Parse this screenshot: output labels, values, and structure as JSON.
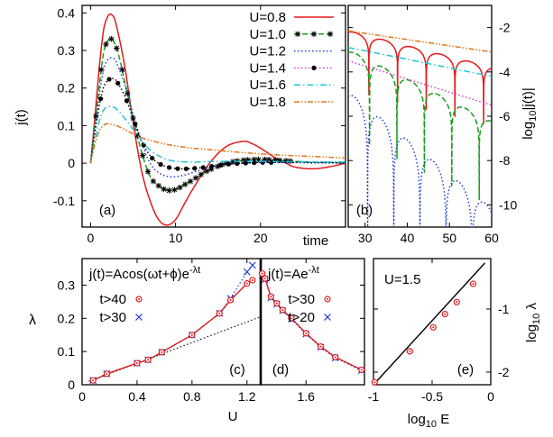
{
  "colors": {
    "U08": "#e41a1c",
    "U10": "#1a9e1a",
    "U12": "#1f3bd6",
    "U14": "#d73cd4",
    "U16": "#1bc9dd",
    "U18": "#e0781a",
    "fit40": "#e41a1c",
    "fit30": "#1f3bd6",
    "black": "#000000"
  },
  "chart_data": [
    {
      "id": "a",
      "type": "line",
      "panel_label": "(a)",
      "ylabel": "j(t)",
      "xlabel": "",
      "xlim": [
        -1,
        30
      ],
      "ylim": [
        -0.17,
        0.42
      ],
      "xticks": [
        "0",
        "10",
        "20"
      ],
      "yticks": [
        "-0.1",
        "0",
        "0.1",
        "0.2",
        "0.3",
        "0.4"
      ],
      "legend_position": "top-right",
      "series": [
        {
          "name": "U=0.8",
          "style": "solid",
          "color": "#e41a1c",
          "x": [
            0,
            0.5,
            1,
            1.5,
            2,
            2.5,
            3,
            4,
            5,
            6,
            7,
            8,
            9,
            10,
            11,
            12,
            14,
            16,
            18,
            19,
            20,
            21,
            22,
            23,
            24,
            26,
            28,
            30
          ],
          "y": [
            0,
            0.12,
            0.25,
            0.35,
            0.39,
            0.395,
            0.37,
            0.26,
            0.11,
            -0.02,
            -0.1,
            -0.15,
            -0.165,
            -0.15,
            -0.11,
            -0.07,
            0.0,
            0.045,
            0.058,
            0.052,
            0.04,
            0.025,
            0.01,
            0.0,
            -0.01,
            -0.015,
            -0.01,
            0.0
          ]
        },
        {
          "name": "U=1.0",
          "style": "dashed-star",
          "color": "#1a9e1a",
          "x": [
            0,
            0.5,
            1,
            1.5,
            2,
            2.5,
            3,
            3.5,
            4,
            5,
            6,
            7,
            8,
            9,
            10,
            11,
            12,
            13,
            14,
            16,
            18,
            20,
            22,
            24,
            26,
            28,
            30
          ],
          "y": [
            0,
            0.1,
            0.2,
            0.29,
            0.325,
            0.33,
            0.31,
            0.27,
            0.22,
            0.12,
            0.03,
            -0.035,
            -0.06,
            -0.072,
            -0.07,
            -0.058,
            -0.045,
            -0.03,
            -0.018,
            0.0,
            0.008,
            0.01,
            0.008,
            0.005,
            0.003,
            0.002,
            0.001
          ]
        },
        {
          "name": "U=1.2",
          "style": "dotted",
          "color": "#1f3bd6",
          "x": [
            0,
            0.5,
            1,
            1.5,
            2,
            2.5,
            3,
            4,
            5,
            6,
            7,
            8,
            9,
            10,
            11,
            12,
            14,
            16,
            18,
            20,
            24,
            28,
            30
          ],
          "y": [
            0,
            0.09,
            0.18,
            0.245,
            0.275,
            0.28,
            0.27,
            0.21,
            0.13,
            0.055,
            0.0,
            -0.025,
            -0.035,
            -0.036,
            -0.032,
            -0.025,
            -0.012,
            -0.004,
            0.0,
            0.002,
            0.003,
            0.002,
            0.001
          ]
        },
        {
          "name": "U=1.4",
          "style": "dotted-circle",
          "color": "#000000",
          "x": [
            0,
            0.5,
            1,
            1.5,
            2,
            2.5,
            3,
            4,
            5,
            6,
            7,
            8,
            9,
            10,
            11,
            12,
            13,
            14,
            15,
            16,
            17,
            18,
            19,
            20,
            21,
            22,
            23,
            24,
            26,
            28,
            30
          ],
          "y": [
            0,
            0.08,
            0.15,
            0.2,
            0.22,
            0.225,
            0.22,
            0.18,
            0.12,
            0.06,
            0.02,
            0.0,
            -0.01,
            -0.014,
            -0.015,
            -0.014,
            -0.012,
            -0.009,
            -0.006,
            -0.003,
            -0.001,
            0.0,
            0.001,
            0.002,
            0.002,
            0.002,
            0.002,
            0.002,
            0.001,
            0.001,
            0.0
          ]
        },
        {
          "name": "U=1.6",
          "style": "dash-dot",
          "color": "#1bc9dd",
          "x": [
            0,
            0.5,
            1,
            1.5,
            2,
            2.5,
            3,
            4,
            5,
            6,
            7,
            8,
            9,
            10,
            12,
            14,
            16,
            20,
            24,
            30
          ],
          "y": [
            0,
            0.06,
            0.11,
            0.14,
            0.15,
            0.15,
            0.145,
            0.12,
            0.09,
            0.06,
            0.035,
            0.02,
            0.01,
            0.005,
            0.003,
            0.004,
            0.005,
            0.005,
            0.004,
            0.003
          ]
        },
        {
          "name": "U=1.8",
          "style": "dash-dot-dot",
          "color": "#e0781a",
          "x": [
            0,
            0.5,
            1,
            1.5,
            2,
            3,
            4,
            5,
            6,
            8,
            10,
            12,
            14,
            16,
            18,
            20,
            22,
            24,
            26,
            28,
            30
          ],
          "y": [
            0,
            0.05,
            0.085,
            0.1,
            0.105,
            0.1,
            0.09,
            0.078,
            0.068,
            0.055,
            0.046,
            0.04,
            0.036,
            0.032,
            0.028,
            0.025,
            0.022,
            0.02,
            0.018,
            0.016,
            0.014
          ]
        }
      ]
    },
    {
      "id": "b",
      "type": "line",
      "panel_label": "(b)",
      "ylabel": "log10|j(t)|",
      "xlabel": "",
      "xlim": [
        26,
        60
      ],
      "ylim": [
        -11,
        -1
      ],
      "xticks": [
        "30",
        "40",
        "50",
        "60"
      ],
      "yticks": [
        "-2",
        "-4",
        "-6",
        "-8",
        "-10"
      ],
      "series": [
        {
          "ref": "U=0.8",
          "color": "#e41a1c",
          "style": "solid",
          "period": 6.8,
          "phase": 27.5,
          "amp_start": -2.15,
          "amp_slope": -0.048,
          "dip": 1.6
        },
        {
          "ref": "U=1.0",
          "color": "#1a9e1a",
          "style": "dashed",
          "period": 6.5,
          "phase": 27.8,
          "amp_start": -3.0,
          "amp_slope": -0.095,
          "dip": 2.3
        },
        {
          "ref": "U=1.2",
          "color": "#1f3bd6",
          "style": "dotted",
          "period": 6.2,
          "phase": 27.5,
          "amp_start": -4.9,
          "amp_slope": -0.155,
          "dip": 4.5
        },
        {
          "ref": "U=1.4",
          "color": "#d73cd4",
          "style": "dotted",
          "x": [
            26,
            60
          ],
          "y": [
            -3.5,
            -5.5
          ]
        },
        {
          "ref": "U=1.6",
          "color": "#1bc9dd",
          "style": "dash-dot",
          "x": [
            26,
            60
          ],
          "y": [
            -2.9,
            -4.2
          ]
        },
        {
          "ref": "U=1.8",
          "color": "#e0781a",
          "style": "dash-dot-dot",
          "x": [
            26,
            60
          ],
          "y": [
            -2.15,
            -3.1
          ]
        }
      ]
    },
    {
      "id": "c",
      "type": "scatter",
      "panel_label": "(c)",
      "xlabel": "U",
      "ylabel": "λ",
      "annotation": "j(t)=Acos(ωt+ϕ)e",
      "annotation_exp": "-λt",
      "xlim": [
        0,
        1.3
      ],
      "ylim": [
        0,
        0.38
      ],
      "xticks": [
        "0",
        "0.4",
        "0.8",
        "1.2"
      ],
      "yticks": [
        "0",
        "0.1",
        "0.2",
        "0.3"
      ],
      "series": [
        {
          "name": "t>40",
          "marker": "circle",
          "color": "#e41a1c",
          "x": [
            0.08,
            0.18,
            0.4,
            0.48,
            0.58,
            0.8,
            1.0,
            1.08,
            1.2,
            1.24
          ],
          "y": [
            0.013,
            0.033,
            0.065,
            0.075,
            0.098,
            0.15,
            0.215,
            0.255,
            0.305,
            0.315
          ]
        },
        {
          "name": "t>30",
          "marker": "x",
          "color": "#1f3bd6",
          "x": [
            0.08,
            0.18,
            0.4,
            0.48,
            0.58,
            0.8,
            1.0,
            1.08,
            1.2,
            1.24
          ],
          "y": [
            0.013,
            0.033,
            0.065,
            0.075,
            0.098,
            0.15,
            0.215,
            0.26,
            0.34,
            0.36
          ]
        },
        {
          "name": "linear",
          "style": "dotted",
          "color": "#000000",
          "x": [
            0.05,
            1.3
          ],
          "y": [
            0.01,
            0.205
          ]
        }
      ]
    },
    {
      "id": "d",
      "type": "scatter",
      "panel_label": "(d)",
      "xlabel": "",
      "annotation": "j(t)=Ae",
      "annotation_exp": "-λt",
      "xlim": [
        1.29,
        2.0
      ],
      "ylim": [
        0,
        0.38
      ],
      "xticks": [
        "1.6"
      ],
      "series": [
        {
          "name": "t>30",
          "marker": "circle",
          "color": "#e41a1c",
          "x": [
            1.3,
            1.32,
            1.36,
            1.4,
            1.44,
            1.5,
            1.6,
            1.7,
            1.8,
            1.98
          ],
          "y": [
            0.335,
            0.32,
            0.265,
            0.245,
            0.225,
            0.2,
            0.155,
            0.115,
            0.083,
            0.045
          ]
        },
        {
          "name": "t>20",
          "marker": "x",
          "color": "#1f3bd6",
          "x": [
            1.3,
            1.32,
            1.36,
            1.4,
            1.44,
            1.5,
            1.6,
            1.7,
            1.8,
            1.98
          ],
          "y": [
            0.33,
            0.317,
            0.262,
            0.243,
            0.223,
            0.198,
            0.153,
            0.113,
            0.081,
            0.043
          ]
        }
      ]
    },
    {
      "id": "e",
      "type": "scatter",
      "panel_label": "(e)",
      "xlabel": "log10 E",
      "ylabel": "log10 λ",
      "annotation": "U=1.5",
      "xlim": [
        -1,
        0
      ],
      "ylim": [
        -2.2,
        -0.2
      ],
      "xticks": [
        "-1",
        "-0.5",
        "0"
      ],
      "yticks": [
        "-1",
        "-2"
      ],
      "series": [
        {
          "name": "points",
          "marker": "circle",
          "color": "#e41a1c",
          "x": [
            -0.99,
            -0.69,
            -0.49,
            -0.39,
            -0.29,
            -0.15
          ],
          "y": [
            -2.16,
            -1.67,
            -1.29,
            -1.08,
            -0.89,
            -0.6
          ]
        },
        {
          "name": "fit",
          "style": "solid",
          "color": "#000000",
          "x": [
            -1.0,
            -0.05
          ],
          "y": [
            -2.2,
            -0.27
          ]
        }
      ]
    }
  ],
  "labels": {
    "time": "time",
    "U": "U",
    "lambda": "λ",
    "jt": "j(t)",
    "b_ylabel_pre": "log",
    "b_ylabel_sub": "10",
    "b_ylabel_post": "|j(t)|",
    "e_xlabel_pre": "log",
    "e_xlabel_sub": "10",
    "e_xlabel_post": " E",
    "e_ylabel_pre": "log",
    "e_ylabel_sub": "10",
    "e_ylabel_post": " λ"
  }
}
